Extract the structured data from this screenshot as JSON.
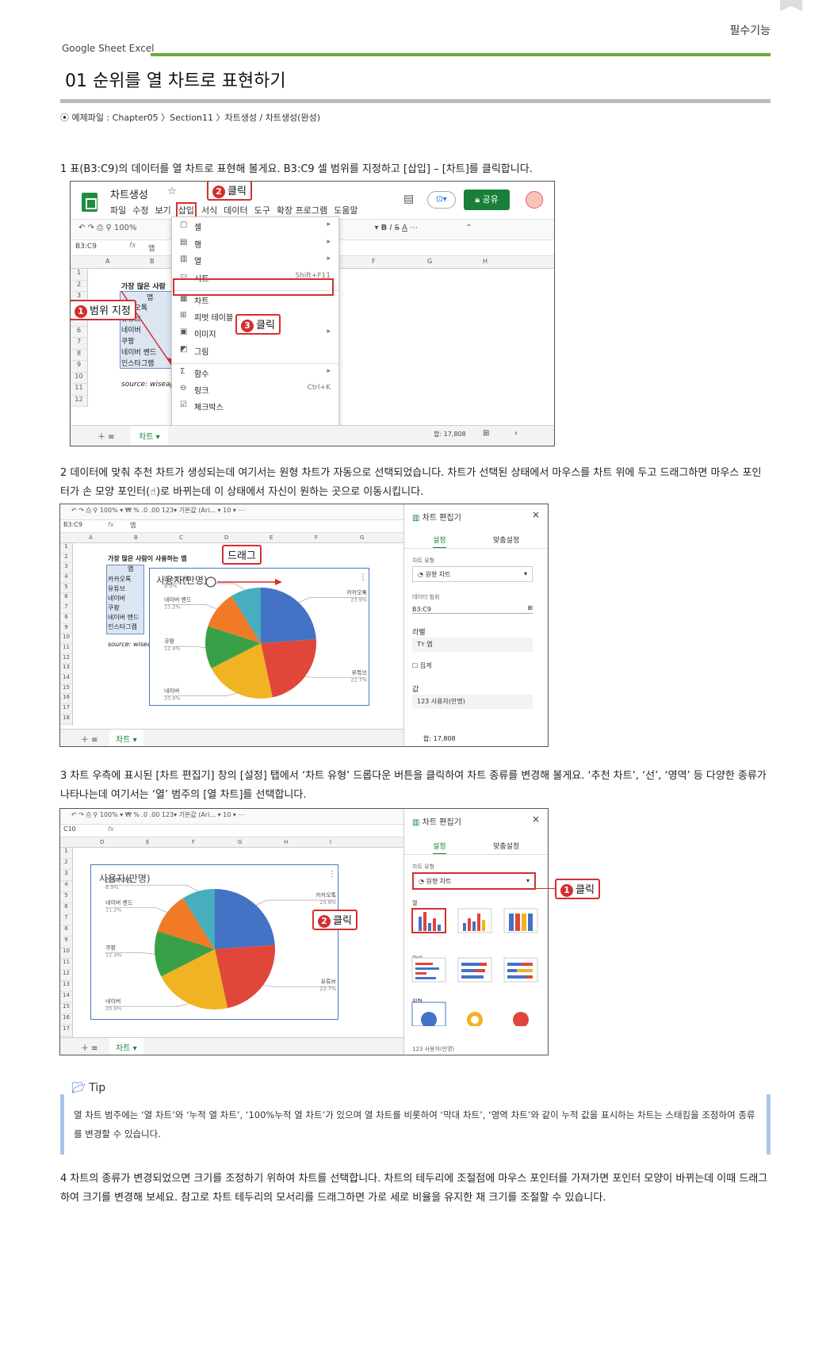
{
  "header": {
    "badge": "필수기능",
    "app": "Google Sheet  Excel",
    "title": "01 순위를 열 차트로 표현하기",
    "file": "⦿ 예제파일 : Chapter05 〉Section11 〉차트생성 / 차트생성(완성)"
  },
  "steps": [
    "1 표(B3:C9)의 데이터를 열 차트로 표현해 볼게요. B3:C9 셀 범위를 지정하고 [삽입] – [차트]를 클릭합니다.",
    "2 데이터에 맞춰 추천 차트가 생성되는데 여기서는 원형 차트가 자동으로 선택되었습니다. 차트가 선택된 상태에서 마우스를 차트 위에 두고 드래그하면 마우스 포인터가 손 모양 포인터(☝)로 바뀌는데 이 상태에서 자신이 원하는 곳으로 이동시킵니다.",
    "3 차트 우측에 표시된 [차트 편집기] 창의 [설정] 탭에서 ‘차트 유형’ 드롭다운 버튼을 클릭하여 차트 종류를 변경해 볼게요. ‘추천 차트’, ‘선’, ‘영역’ 등 다양한 종류가 나타나는데 여기서는 ‘열’ 범주의 [열 차트]를 선택합니다.",
    "4 차트의 종류가 변경되었으면 크기를 조정하기 위하여 차트를 선택합니다. 차트의 테두리에 조절점에 마우스 포인터를 가져가면 포인터 모양이 바뀌는데 이때 드래그하여 크기를 변경해 보세요. 참고로 차트 테두리의 모서리를 드래그하면 가로 세로 비율을 유지한 채 크기를 조절할 수 있습니다."
  ],
  "tip": {
    "label": "Tip",
    "text": "열 차트 범주에는 ‘열 차트’와 ‘누적 열 차트’, ‘100%누적 열 차트’가 있으며 열 차트를 비롯하여 ‘막대 차트’, ‘영역 차트’와 같이 누적 값을 표시하는 차트는 스태킹을 조정하여 종류를 변경할 수 있습니다."
  },
  "shot1": {
    "doc_title": "차트생성",
    "menus": [
      "파일",
      "수정",
      "보기",
      "삽입",
      "서식",
      "데이터",
      "도구",
      "확장 프로그램",
      "도움말"
    ],
    "share": "공유",
    "zoom": "100%",
    "namebox": "B3:C9",
    "fx": "앱",
    "cols": [
      "A",
      "B",
      "F",
      "G",
      "H"
    ],
    "rows": [
      "1",
      "2",
      "3",
      "4",
      "5",
      "6",
      "7",
      "8",
      "9",
      "10",
      "11",
      "12"
    ],
    "cells": [
      "가장 많은 사람",
      "앱",
      "카카오톡",
      "유튜브",
      "네이버",
      "쿠팡",
      "네이버 밴드",
      "인스타그램",
      "source: wiseap"
    ],
    "menu_items": [
      {
        "icon": "▢",
        "label": "셀",
        "right": "▸"
      },
      {
        "icon": "▤",
        "label": "행",
        "right": "▸"
      },
      {
        "icon": "▥",
        "label": "열",
        "right": "▸"
      },
      {
        "icon": "▭",
        "label": "시트",
        "right": "Shift+F11"
      },
      {
        "icon": "▦",
        "label": "차트",
        "right": ""
      },
      {
        "icon": "⊞",
        "label": "피벗 테이블",
        "right": ""
      },
      {
        "icon": "▣",
        "label": "이미지",
        "right": "▸"
      },
      {
        "icon": "◩",
        "label": "그림",
        "right": ""
      },
      {
        "icon": "Σ",
        "label": "함수",
        "right": "▸"
      },
      {
        "icon": "⊖",
        "label": "링크",
        "right": "Ctrl+K"
      },
      {
        "icon": "☑",
        "label": "체크박스",
        "right": ""
      }
    ],
    "callouts": [
      "범위 지정",
      "클릭",
      "클릭"
    ],
    "callout_nums": [
      "1",
      "2",
      "3"
    ],
    "sheet_tab": "차트",
    "sum": "합: 17,808"
  },
  "shot2": {
    "namebox": "B3:C9",
    "fx": "앱",
    "zoom": "100%",
    "font": "기본값 (Ari...",
    "size": "10",
    "cols": [
      "A",
      "B",
      "C",
      "D",
      "E",
      "F",
      "G"
    ],
    "cells": [
      "가장 많은 사람이 사용하는 앱",
      "앱",
      "카카오톡",
      "유튜브",
      "네이버",
      "쿠팡",
      "네이버 밴드",
      "인스타그램",
      "source: wisea"
    ],
    "chart_title": "사용자(만명)",
    "panel_title": "차트 편집기",
    "tabs": [
      "설정",
      "맞춤설정"
    ],
    "chart_type_label": "차트 유형",
    "chart_type": "원형 차트",
    "range_label": "데이터 범위",
    "range": "B3:C9",
    "label_label": "라벨",
    "label_value": "앱",
    "aggregate": "집계",
    "value_label": "값",
    "value": "사용자(만명)",
    "callout": "드래그",
    "sheet_tab": "차트",
    "sum": "합: 17,808"
  },
  "shot3": {
    "namebox": "C10",
    "zoom": "100%",
    "font": "기본값 (Ari...",
    "size": "10",
    "cols": [
      "D",
      "E",
      "F",
      "G",
      "H",
      "I"
    ],
    "chart_title": "사용자(만명)",
    "panel_title": "차트 편집기",
    "tabs": [
      "설정",
      "맞춤설정"
    ],
    "chart_type_label": "차트 유형",
    "chart_type": "원형 차트",
    "groups": [
      "열",
      "막대",
      "원형"
    ],
    "partial": "사용자(만명)",
    "callouts": [
      "클릭",
      "클릭"
    ],
    "callout_nums": [
      "1",
      "2"
    ],
    "sheet_tab": "차트"
  },
  "chart_data": {
    "type": "pie",
    "title": "사용자(만명)",
    "categories": [
      "카카오톡",
      "유튜브",
      "네이버",
      "쿠팡",
      "네이버 밴드",
      "인스타그램"
    ],
    "values": [
      23.9,
      22.7,
      20.9,
      12.4,
      11.2,
      8.9
    ],
    "labels": [
      "23.9%",
      "22.7%",
      "20.9%",
      "12.4%",
      "11.2%",
      "8.9%"
    ],
    "colors": [
      "#4472c4",
      "#e0463a",
      "#f0b323",
      "#3aa048",
      "#f07a26",
      "#46aebd"
    ]
  }
}
